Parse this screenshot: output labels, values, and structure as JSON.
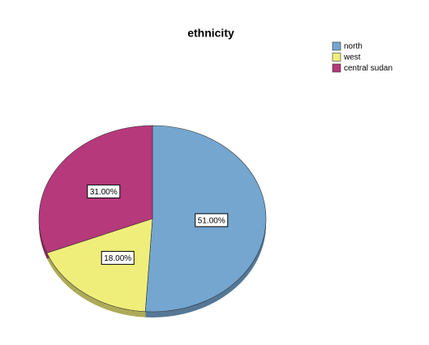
{
  "chart_data": {
    "type": "pie",
    "title": "ethnicity",
    "categories": [
      "north",
      "west",
      "central sudan"
    ],
    "values": [
      51,
      18,
      31
    ],
    "value_labels": [
      "51.00%",
      "18.00%",
      "31.00%"
    ],
    "colors": [
      "#74a6d0",
      "#f0ee7a",
      "#b5397b"
    ],
    "legend": "upper right"
  }
}
